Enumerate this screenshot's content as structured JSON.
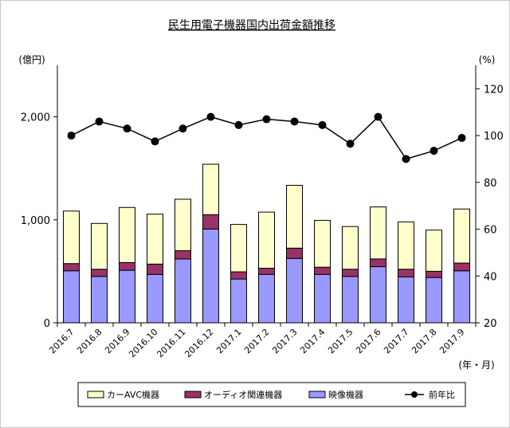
{
  "chart_data": {
    "type": "bar",
    "title": "民生用電子機器国内出荷金額推移",
    "y_left_unit": "(億円)",
    "y_right_unit": "(%)",
    "x_unit": "(年・月)",
    "categories": [
      "2016.7",
      "2016.8",
      "2016.9",
      "2016.10",
      "2016.11",
      "2016.12",
      "2017.1",
      "2017.2",
      "2017.3",
      "2017.4",
      "2017.5",
      "2017.6",
      "2017.7",
      "2017.8",
      "2017.9"
    ],
    "ylim_left": [
      0,
      2500
    ],
    "ylim_right": [
      20,
      130
    ],
    "left_ticks": [
      {
        "value": 0,
        "label": "0"
      },
      {
        "value": 1000,
        "label": "1,000"
      },
      {
        "value": 2000,
        "label": "2,000"
      }
    ],
    "right_ticks": [
      {
        "value": 20,
        "label": "20"
      },
      {
        "value": 40,
        "label": "40"
      },
      {
        "value": 60,
        "label": "60"
      },
      {
        "value": 80,
        "label": "80"
      },
      {
        "value": 100,
        "label": "100"
      },
      {
        "value": 120,
        "label": "120"
      }
    ],
    "series": [
      {
        "name": "映像機器",
        "type": "bar",
        "axis": "left",
        "color": "#9999ff",
        "values": [
          505,
          450,
          510,
          470,
          620,
          910,
          425,
          470,
          625,
          470,
          450,
          545,
          445,
          440,
          505
        ]
      },
      {
        "name": "オーディオ関連機器",
        "type": "bar",
        "axis": "left",
        "color": "#993366",
        "values": [
          70,
          70,
          75,
          100,
          80,
          140,
          70,
          60,
          100,
          70,
          70,
          75,
          75,
          60,
          75
        ]
      },
      {
        "name": "カーAVC機器",
        "type": "bar",
        "axis": "left",
        "color": "#ffffcc",
        "values": [
          510,
          445,
          535,
          485,
          500,
          490,
          460,
          545,
          610,
          455,
          415,
          505,
          460,
          400,
          525
        ]
      },
      {
        "name": "前年比",
        "type": "line",
        "axis": "right",
        "color": "#000000",
        "values": [
          100,
          106,
          103,
          97.5,
          103,
          108,
          104.5,
          107,
          106,
          104.5,
          96.5,
          108,
          90,
          93.5,
          99
        ]
      }
    ],
    "legend": {
      "position": "bottom",
      "items": [
        "カーAVC機器",
        "オーディオ関連機器",
        "映像機器",
        "前年比"
      ]
    }
  }
}
